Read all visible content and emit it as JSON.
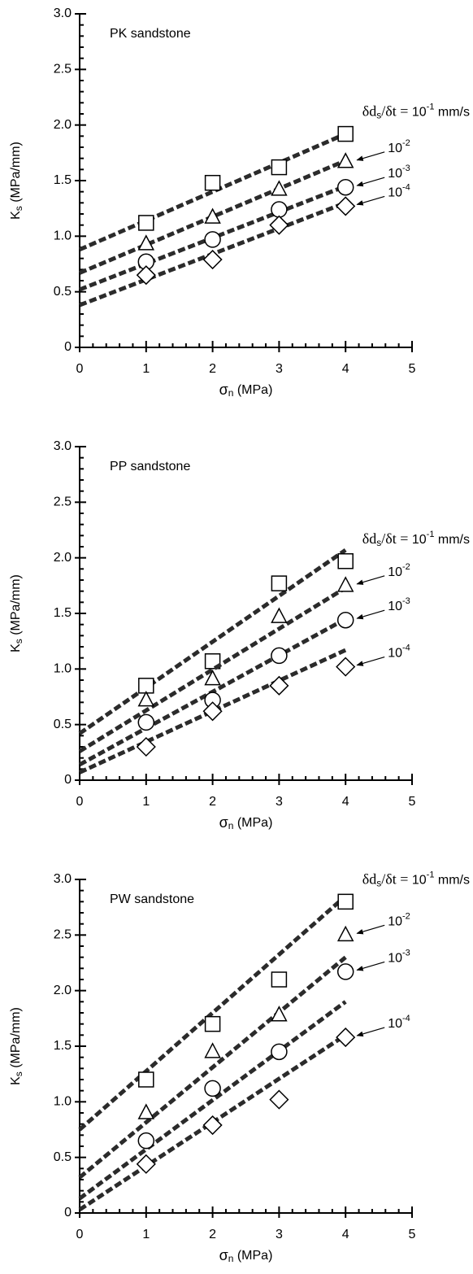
{
  "chart_data": [
    {
      "type": "scatter",
      "title": "PK sandstone",
      "xlabel": {
        "symbol": "σ",
        "sub": "n",
        "rest": " (MPa)"
      },
      "ylabel": {
        "symbol": "K",
        "sub": "s",
        "rest": " (MPa/mm)"
      },
      "xlim": [
        0,
        5
      ],
      "ylim": [
        0,
        3
      ],
      "xticks": [
        0,
        1,
        2,
        3,
        4,
        5
      ],
      "yticks": [
        0,
        0.5,
        {
          "value": 1,
          "label": "1.0"
        },
        1.5,
        {
          "value": 2,
          "label": "2.0"
        },
        2.5,
        {
          "value": 3,
          "label": "3.0"
        }
      ],
      "x": [
        1,
        2,
        3,
        4
      ],
      "fit_x": [
        0,
        4
      ],
      "series": [
        {
          "name": {
            "prefix": "δd",
            "sub": "s",
            "mid": "/δt = ",
            "base": "10",
            "exp": "-1",
            "suffix": " mm/s"
          },
          "marker": "square",
          "values": [
            1.12,
            1.48,
            1.62,
            1.92
          ],
          "fit": [
            0.88,
            1.92
          ]
        },
        {
          "name": {
            "base": "10",
            "exp": "-2"
          },
          "marker": "triangle",
          "values": [
            0.93,
            1.17,
            1.42,
            1.67
          ],
          "fit": [
            0.67,
            1.68
          ]
        },
        {
          "name": {
            "base": "10",
            "exp": "-3"
          },
          "marker": "circle",
          "values": [
            0.77,
            0.97,
            1.24,
            1.44
          ],
          "fit": [
            0.52,
            1.45
          ]
        },
        {
          "name": {
            "base": "10",
            "exp": "-4"
          },
          "marker": "diamond",
          "values": [
            0.65,
            0.79,
            1.1,
            1.27
          ],
          "fit": [
            0.38,
            1.3
          ]
        }
      ]
    },
    {
      "type": "scatter",
      "title": "PP sandstone",
      "xlabel": {
        "symbol": "σ",
        "sub": "n",
        "rest": " (MPa)"
      },
      "ylabel": {
        "symbol": "K",
        "sub": "s",
        "rest": " (MPa/mm)"
      },
      "xlim": [
        0,
        5
      ],
      "ylim": [
        0,
        3
      ],
      "xticks": [
        0,
        1,
        2,
        3,
        4,
        5
      ],
      "yticks": [
        0,
        0.5,
        {
          "value": 1,
          "label": "1.0"
        },
        1.5,
        {
          "value": 2,
          "label": "2.0"
        },
        2.5,
        {
          "value": 3,
          "label": "3.0"
        }
      ],
      "x": [
        1,
        2,
        3,
        4
      ],
      "fit_x": [
        0,
        4
      ],
      "series": [
        {
          "name": {
            "prefix": "δd",
            "sub": "s",
            "mid": "/δt = ",
            "base": "10",
            "exp": "-1",
            "suffix": " mm/s"
          },
          "marker": "square",
          "values": [
            0.85,
            1.07,
            1.77,
            1.97
          ],
          "fit": [
            0.42,
            2.07
          ]
        },
        {
          "name": {
            "base": "10",
            "exp": "-2"
          },
          "marker": "triangle",
          "values": [
            0.72,
            0.91,
            1.47,
            1.75
          ],
          "fit": [
            0.26,
            1.73
          ]
        },
        {
          "name": {
            "base": "10",
            "exp": "-3"
          },
          "marker": "circle",
          "values": [
            0.52,
            0.72,
            1.12,
            1.44
          ],
          "fit": [
            0.14,
            1.45
          ]
        },
        {
          "name": {
            "base": "10",
            "exp": "-4"
          },
          "marker": "diamond",
          "values": [
            0.3,
            0.62,
            0.85,
            1.02
          ],
          "fit": [
            0.07,
            1.17
          ]
        }
      ]
    },
    {
      "type": "scatter",
      "title": "PW sandstone",
      "xlabel": {
        "symbol": "σ",
        "sub": "n",
        "rest": " (MPa)"
      },
      "ylabel": {
        "symbol": "K",
        "sub": "s",
        "rest": " (MPa/mm)"
      },
      "xlim": [
        0,
        5
      ],
      "ylim": [
        0,
        3
      ],
      "xticks": [
        0,
        1,
        2,
        3,
        4,
        5
      ],
      "yticks": [
        0,
        0.5,
        {
          "value": 1,
          "label": "1.0"
        },
        1.5,
        {
          "value": 2,
          "label": "2.0"
        },
        2.5,
        {
          "value": 3,
          "label": "3.0"
        }
      ],
      "x": [
        1,
        2,
        3,
        4
      ],
      "fit_x": [
        0,
        4
      ],
      "series": [
        {
          "name": {
            "prefix": "δd",
            "sub": "s",
            "mid": "/δt = ",
            "base": "10",
            "exp": "-1",
            "suffix": " mm/s"
          },
          "marker": "square",
          "values": [
            1.2,
            1.7,
            2.1,
            2.8
          ],
          "fit": [
            0.75,
            2.85
          ]
        },
        {
          "name": {
            "base": "10",
            "exp": "-2"
          },
          "marker": "triangle",
          "values": [
            0.9,
            1.45,
            1.78,
            2.5
          ],
          "fit": [
            0.32,
            2.3
          ]
        },
        {
          "name": {
            "base": "10",
            "exp": "-3"
          },
          "marker": "circle",
          "values": [
            0.65,
            1.12,
            1.45,
            2.17
          ],
          "fit": [
            0.13,
            1.9
          ]
        },
        {
          "name": {
            "base": "10",
            "exp": "-4"
          },
          "marker": "diamond",
          "values": [
            0.44,
            0.79,
            1.02,
            1.58
          ],
          "fit": [
            0.03,
            1.6
          ]
        }
      ]
    }
  ]
}
